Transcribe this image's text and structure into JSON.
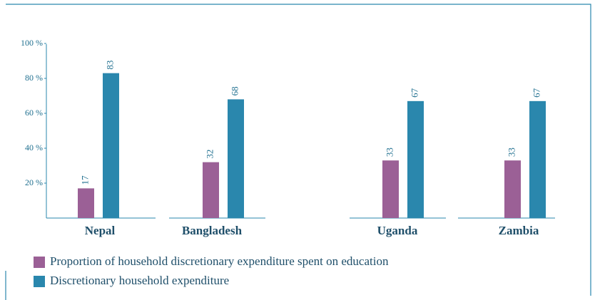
{
  "chart_data": {
    "type": "bar",
    "categories": [
      "Nepal",
      "Bangladesh",
      "Uganda",
      "Zambia"
    ],
    "series": [
      {
        "name": "Proportion of household discretionary expenditure spent on education",
        "color": "#9b6096",
        "values": [
          17,
          32,
          33,
          33
        ]
      },
      {
        "name": "Discretionary household expenditure",
        "color": "#2a87ad",
        "values": [
          83,
          68,
          67,
          67
        ]
      }
    ],
    "ylim": [
      0,
      100
    ],
    "yticks": [
      {
        "value": 20,
        "label": "20 %"
      },
      {
        "value": 40,
        "label": "40 %"
      },
      {
        "value": 60,
        "label": "60 %"
      },
      {
        "value": 80,
        "label": "80 %"
      },
      {
        "value": 100,
        "label": "100 %"
      }
    ]
  }
}
